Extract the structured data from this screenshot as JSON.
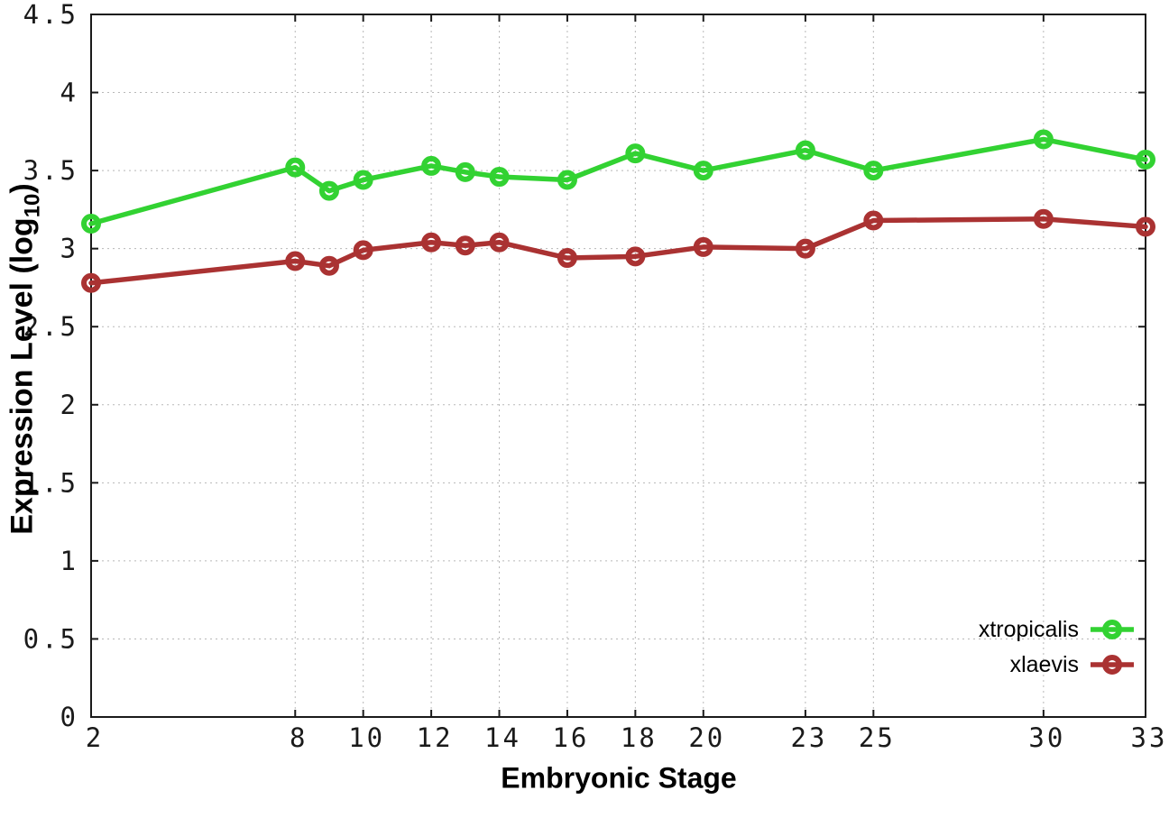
{
  "chart_data": {
    "type": "line",
    "title": "",
    "xlabel": "Embryonic Stage",
    "ylabel": "Expression Level (log10)",
    "ylabel_parts": {
      "prefix": "Expression Level (log",
      "sub": "10",
      "suffix": ")"
    },
    "x": [
      2,
      8,
      9,
      10,
      12,
      13,
      14,
      16,
      18,
      20,
      23,
      25,
      30,
      33
    ],
    "series": [
      {
        "name": "xtropicalis",
        "color": "#32d232",
        "values": [
          3.16,
          3.52,
          3.37,
          3.44,
          3.53,
          3.49,
          3.46,
          3.44,
          3.61,
          3.5,
          3.63,
          3.5,
          3.7,
          3.57
        ]
      },
      {
        "name": "xlaevis",
        "color": "#aa3232",
        "values": [
          2.78,
          2.92,
          2.89,
          2.99,
          3.04,
          3.02,
          3.04,
          2.94,
          2.95,
          3.01,
          3.0,
          3.18,
          3.19,
          3.14
        ]
      }
    ],
    "xlim": [
      2,
      33
    ],
    "ylim": [
      0,
      4.5
    ],
    "xticks": [
      2,
      8,
      10,
      12,
      14,
      16,
      18,
      20,
      23,
      25,
      30,
      33
    ],
    "xtick_labels": [
      "2",
      "8",
      "10",
      "12",
      "14",
      "16",
      "18",
      "20",
      "23",
      "25",
      "30",
      "33"
    ],
    "yticks": [
      0,
      0.5,
      1,
      1.5,
      2,
      2.5,
      3,
      3.5,
      4,
      4.5
    ],
    "ytick_labels": [
      "0",
      "0.5",
      "1",
      "1.5",
      "2",
      "2.5",
      "3",
      "3.5",
      "4",
      "4.5"
    ],
    "grid": true,
    "legend_position": "bottom-right"
  },
  "colors": {
    "background": "#ffffff",
    "axis": "#1a1a1a",
    "grid": "#b8b8b8",
    "text": "#000000",
    "xtropicalis": "#32d232",
    "xlaevis": "#aa3232"
  }
}
